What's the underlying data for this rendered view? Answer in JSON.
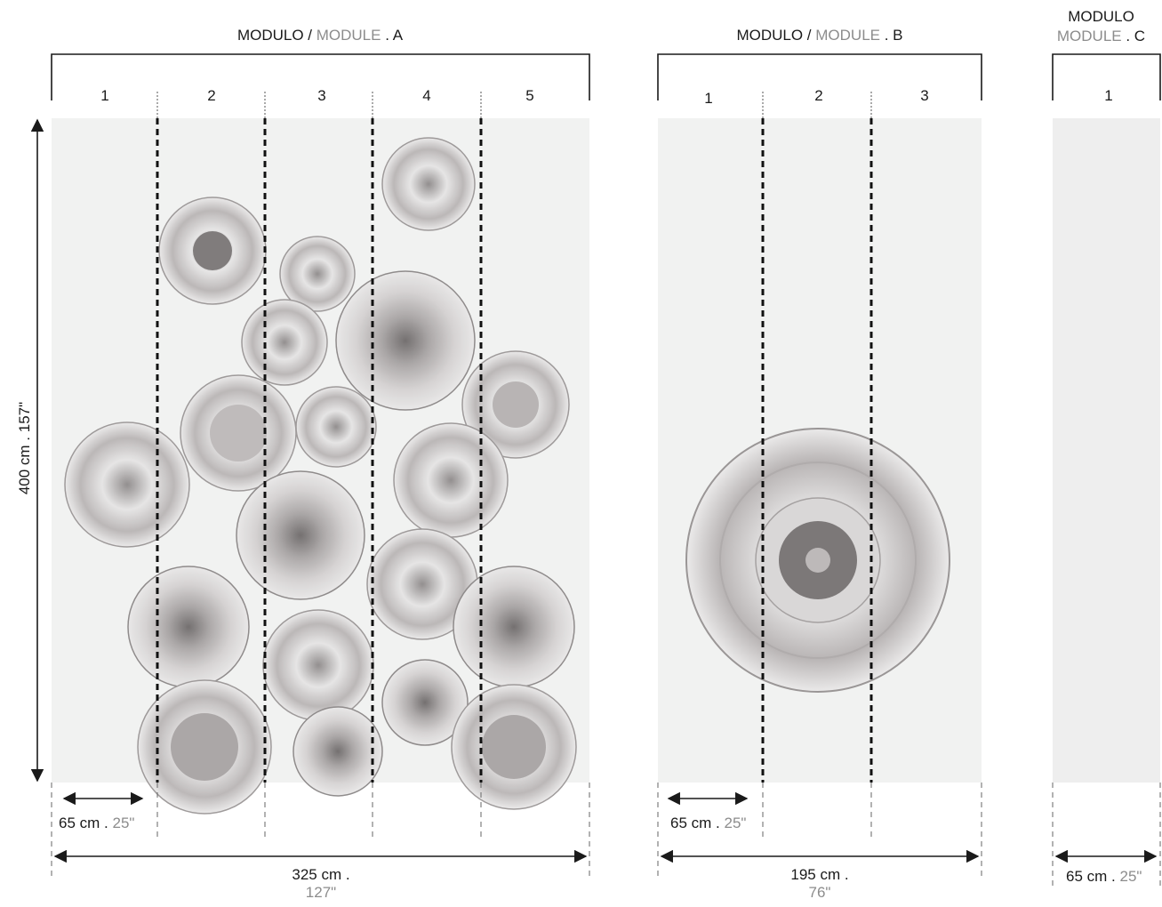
{
  "modules": [
    {
      "id": "A",
      "title_prefix": "MODULO /",
      "title_grey": "MODULE",
      "title_suffix": ". A",
      "panels": [
        "1",
        "2",
        "3",
        "4",
        "5"
      ],
      "panel_width_cm": "65 cm .",
      "panel_width_in": "25\"",
      "total_cm": "325 cm .",
      "total_in": "127\""
    },
    {
      "id": "B",
      "title_prefix": "MODULO /",
      "title_grey": "MODULE",
      "title_suffix": ". B",
      "panels": [
        "1",
        "2",
        "3"
      ],
      "panel_width_cm": "65 cm .",
      "panel_width_in": "25\"",
      "total_cm": "195 cm .",
      "total_in": "76\""
    },
    {
      "id": "C",
      "title_line1": "MODULO",
      "title_grey": "MODULE",
      "title_suffix": ". C",
      "panels": [
        "1"
      ],
      "panel_width_cm": "65 cm .",
      "panel_width_in": "25\""
    }
  ],
  "height_label": "400 cm . 157\"",
  "colors": {
    "panel_bg": "#f1f2f1",
    "line": "#1a1a1a",
    "grey_text": "#8c8c8c"
  }
}
